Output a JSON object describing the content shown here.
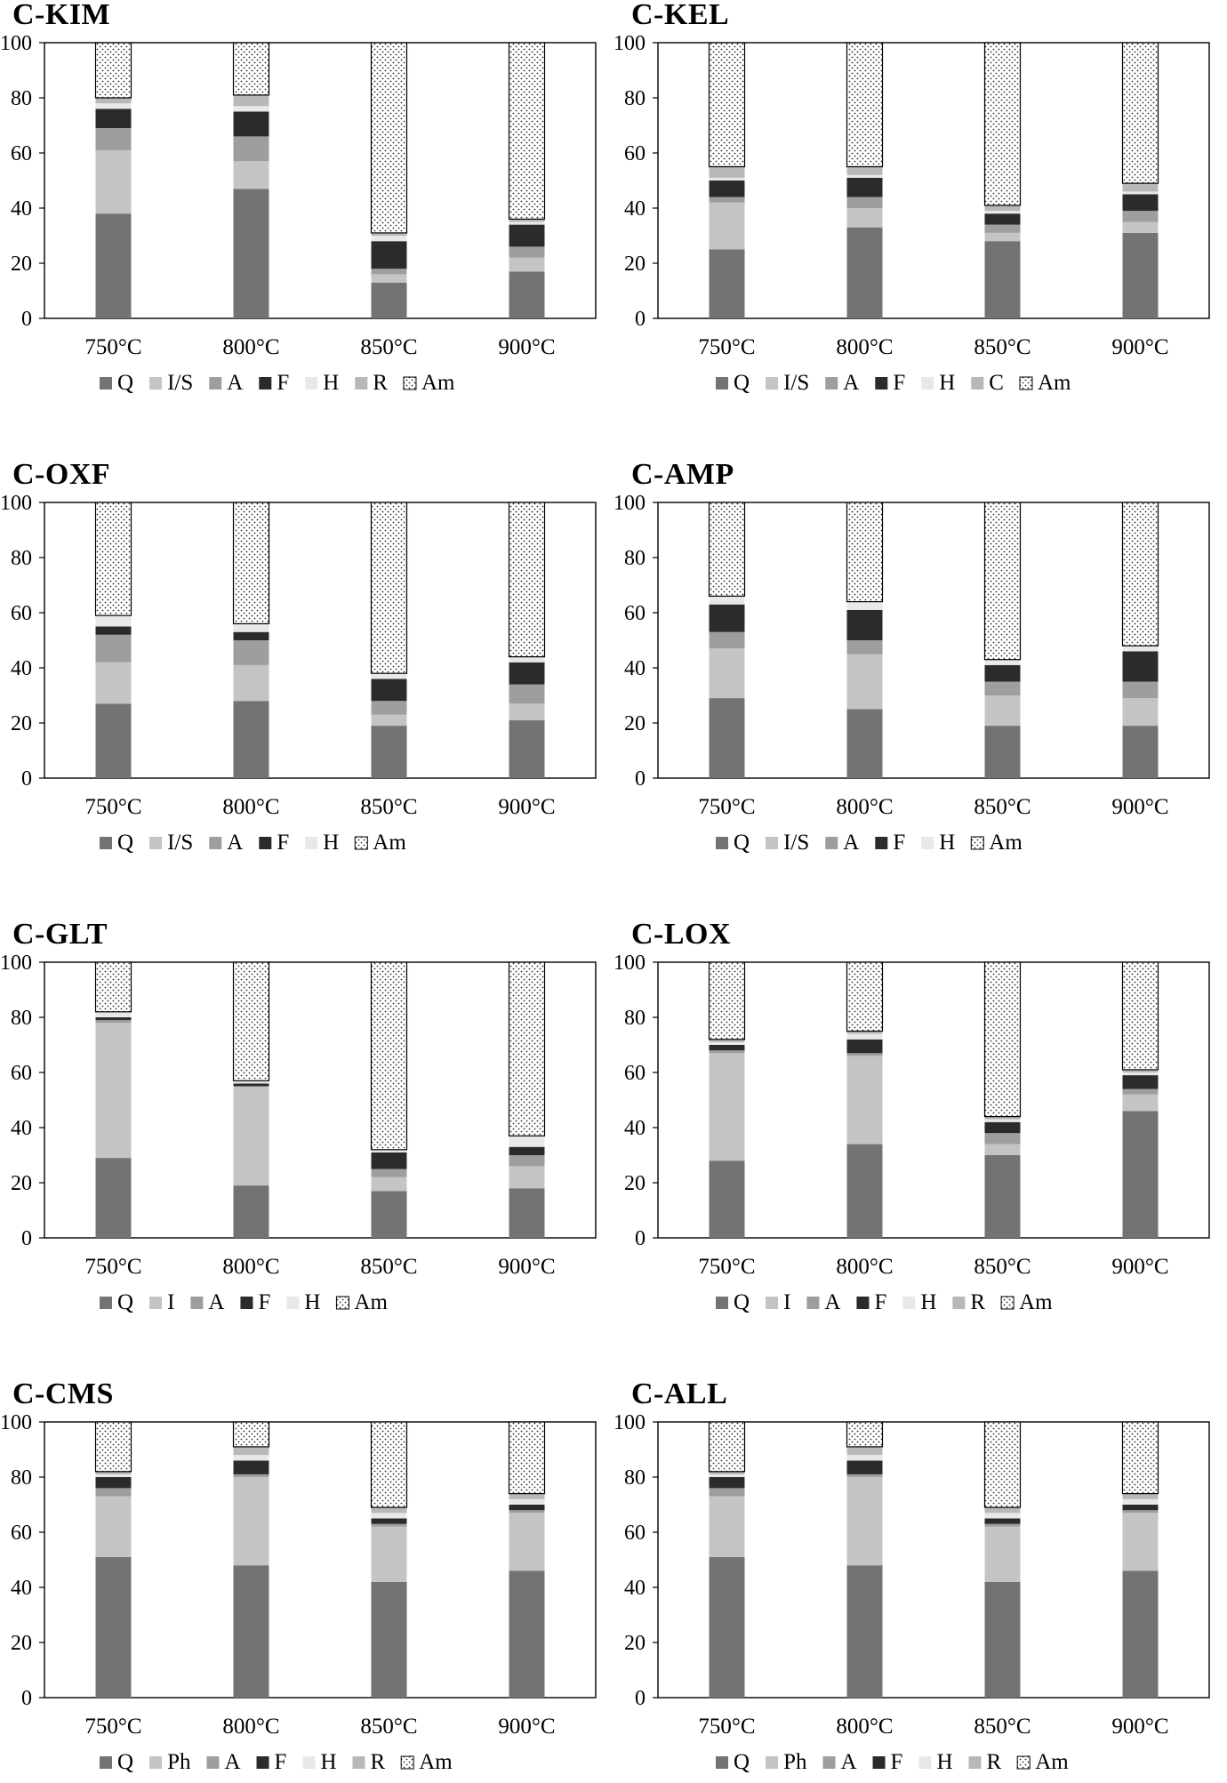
{
  "y_ticks": [
    "0",
    "20",
    "40",
    "60",
    "80",
    "100"
  ],
  "colors": {
    "Q": "#737373",
    "I/S": "#c4c4c4",
    "I": "#c4c4c4",
    "Ph": "#c4c4c4",
    "A": "#9e9e9e",
    "F": "#2b2b2b",
    "H": "#e8e8e8",
    "R": "#b8b8b8",
    "C": "#b8b8b8",
    "Am": "dots"
  },
  "chart_data": [
    {
      "type": "bar",
      "stacked": true,
      "title": "C-KIM",
      "categories": [
        "750°C",
        "800°C",
        "850°C",
        "900°C"
      ],
      "ylim": [
        0,
        100
      ],
      "legend_position": "bottom",
      "series": [
        {
          "name": "Q",
          "values": [
            38,
            47,
            13,
            17
          ]
        },
        {
          "name": "I/S",
          "values": [
            23,
            10,
            3,
            5
          ]
        },
        {
          "name": "A",
          "values": [
            8,
            9,
            2,
            4
          ]
        },
        {
          "name": "F",
          "values": [
            7,
            9,
            10,
            8
          ]
        },
        {
          "name": "H",
          "values": [
            2,
            2,
            2,
            1
          ]
        },
        {
          "name": "R",
          "values": [
            2,
            4,
            1,
            1
          ]
        },
        {
          "name": "Am",
          "values": [
            20,
            19,
            69,
            64
          ]
        }
      ]
    },
    {
      "type": "bar",
      "stacked": true,
      "title": "C-KEL",
      "categories": [
        "750°C",
        "800°C",
        "850°C",
        "900°C"
      ],
      "ylim": [
        0,
        100
      ],
      "legend_position": "bottom",
      "series": [
        {
          "name": "Q",
          "values": [
            25,
            33,
            28,
            31
          ]
        },
        {
          "name": "I/S",
          "values": [
            17,
            7,
            3,
            4
          ]
        },
        {
          "name": "A",
          "values": [
            2,
            4,
            3,
            4
          ]
        },
        {
          "name": "F",
          "values": [
            6,
            7,
            4,
            6
          ]
        },
        {
          "name": "H",
          "values": [
            1,
            1,
            1,
            1
          ]
        },
        {
          "name": "C",
          "values": [
            4,
            3,
            2,
            3
          ]
        },
        {
          "name": "Am",
          "values": [
            45,
            45,
            59,
            51
          ]
        }
      ]
    },
    {
      "type": "bar",
      "stacked": true,
      "title": "C-OXF",
      "categories": [
        "750°C",
        "800°C",
        "850°C",
        "900°C"
      ],
      "ylim": [
        0,
        100
      ],
      "legend_position": "bottom",
      "series": [
        {
          "name": "Q",
          "values": [
            27,
            28,
            19,
            21
          ]
        },
        {
          "name": "I/S",
          "values": [
            15,
            13,
            4,
            6
          ]
        },
        {
          "name": "A",
          "values": [
            10,
            9,
            5,
            7
          ]
        },
        {
          "name": "F",
          "values": [
            3,
            3,
            8,
            8
          ]
        },
        {
          "name": "H",
          "values": [
            4,
            3,
            2,
            2
          ]
        },
        {
          "name": "Am",
          "values": [
            41,
            44,
            62,
            56
          ]
        }
      ]
    },
    {
      "type": "bar",
      "stacked": true,
      "title": "C-AMP",
      "categories": [
        "750°C",
        "800°C",
        "850°C",
        "900°C"
      ],
      "ylim": [
        0,
        100
      ],
      "legend_position": "bottom",
      "series": [
        {
          "name": "Q",
          "values": [
            29,
            25,
            19,
            19
          ]
        },
        {
          "name": "I/S",
          "values": [
            18,
            20,
            11,
            10
          ]
        },
        {
          "name": "A",
          "values": [
            6,
            5,
            5,
            6
          ]
        },
        {
          "name": "F",
          "values": [
            10,
            11,
            6,
            11
          ]
        },
        {
          "name": "H",
          "values": [
            3,
            3,
            2,
            2
          ]
        },
        {
          "name": "Am",
          "values": [
            34,
            36,
            57,
            52
          ]
        }
      ]
    },
    {
      "type": "bar",
      "stacked": true,
      "title": "C-GLT",
      "categories": [
        "750°C",
        "800°C",
        "850°C",
        "900°C"
      ],
      "ylim": [
        0,
        100
      ],
      "legend_position": "bottom",
      "series": [
        {
          "name": "Q",
          "values": [
            29,
            19,
            17,
            18
          ]
        },
        {
          "name": "I",
          "values": [
            49,
            36,
            5,
            8
          ]
        },
        {
          "name": "A",
          "values": [
            1,
            0,
            3,
            4
          ]
        },
        {
          "name": "F",
          "values": [
            1,
            1,
            6,
            3
          ]
        },
        {
          "name": "H",
          "values": [
            2,
            1,
            1,
            4
          ]
        },
        {
          "name": "Am",
          "values": [
            18,
            43,
            68,
            63
          ]
        }
      ]
    },
    {
      "type": "bar",
      "stacked": true,
      "title": "C-LOX",
      "categories": [
        "750°C",
        "800°C",
        "850°C",
        "900°C"
      ],
      "ylim": [
        0,
        100
      ],
      "legend_position": "bottom",
      "series": [
        {
          "name": "Q",
          "values": [
            28,
            34,
            30,
            46
          ]
        },
        {
          "name": "I",
          "values": [
            39,
            32,
            4,
            6
          ]
        },
        {
          "name": "A",
          "values": [
            1,
            1,
            4,
            2
          ]
        },
        {
          "name": "F",
          "values": [
            2,
            5,
            4,
            5
          ]
        },
        {
          "name": "H",
          "values": [
            1,
            2,
            1,
            1
          ]
        },
        {
          "name": "R",
          "values": [
            1,
            1,
            1,
            1
          ]
        },
        {
          "name": "Am",
          "values": [
            28,
            25,
            56,
            39
          ]
        }
      ]
    },
    {
      "type": "bar",
      "stacked": true,
      "title": "C-CMS",
      "categories": [
        "750°C",
        "800°C",
        "850°C",
        "900°C"
      ],
      "ylim": [
        0,
        100
      ],
      "legend_position": "bottom",
      "series": [
        {
          "name": "Q",
          "values": [
            51,
            48,
            42,
            46
          ]
        },
        {
          "name": "Ph",
          "values": [
            22,
            32,
            20,
            21
          ]
        },
        {
          "name": "A",
          "values": [
            3,
            1,
            1,
            1
          ]
        },
        {
          "name": "F",
          "values": [
            4,
            5,
            2,
            2
          ]
        },
        {
          "name": "H",
          "values": [
            1,
            2,
            2,
            2
          ]
        },
        {
          "name": "R",
          "values": [
            1,
            3,
            2,
            2
          ]
        },
        {
          "name": "Am",
          "values": [
            18,
            9,
            31,
            26
          ]
        }
      ]
    },
    {
      "type": "bar",
      "stacked": true,
      "title": "C-ALL",
      "categories": [
        "750°C",
        "800°C",
        "850°C",
        "900°C"
      ],
      "ylim": [
        0,
        100
      ],
      "legend_position": "bottom",
      "series": [
        {
          "name": "Q",
          "values": [
            51,
            48,
            42,
            46
          ]
        },
        {
          "name": "Ph",
          "values": [
            22,
            32,
            20,
            21
          ]
        },
        {
          "name": "A",
          "values": [
            3,
            1,
            1,
            1
          ]
        },
        {
          "name": "F",
          "values": [
            4,
            5,
            2,
            2
          ]
        },
        {
          "name": "H",
          "values": [
            1,
            2,
            2,
            2
          ]
        },
        {
          "name": "R",
          "values": [
            1,
            3,
            2,
            2
          ]
        },
        {
          "name": "Am",
          "values": [
            18,
            9,
            31,
            26
          ]
        }
      ]
    }
  ]
}
